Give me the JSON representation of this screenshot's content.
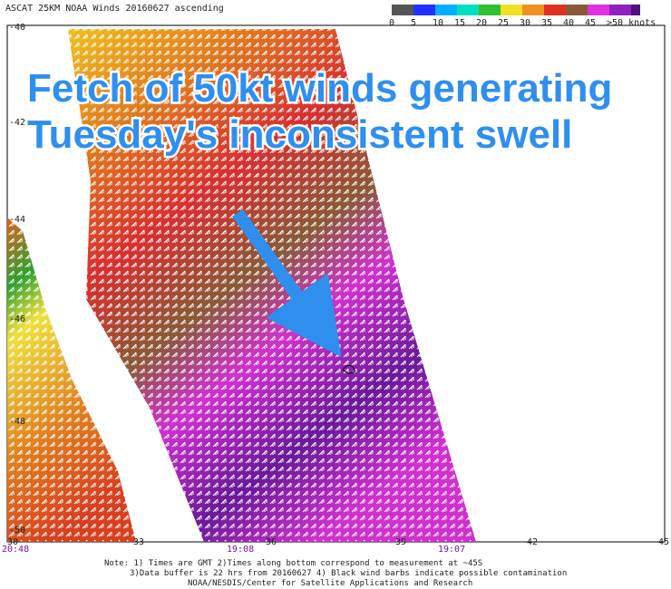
{
  "header": {
    "title": "ASCAT 25KM NOAA Winds 20160627 ascending"
  },
  "scale": {
    "labels": [
      "0",
      "5",
      "10",
      "15",
      "20",
      "25",
      "30",
      "35",
      "40",
      "45",
      ">50 knots"
    ]
  },
  "annotation": {
    "lines": [
      "Fetch of 50kt winds generating",
      "Tuesday's inconsistent swell"
    ]
  },
  "lat_labels": [
    "-40",
    "-42",
    "-44",
    "-46",
    "-48",
    "-50"
  ],
  "lon_labels": [
    "30",
    "33",
    "36",
    "39",
    "42",
    "45"
  ],
  "times": [
    "20:48",
    "19:08",
    "19:07"
  ],
  "notes": [
    "Note: 1) Times are GMT 2)Times along bottom correspond to measurement at ~45S",
    "3)Data buffer is 22 hrs from 20160627 4) Black wind barbs indicate possible contamination",
    "NOAA/NESDIS/Center for Satellite Applications and Research"
  ]
}
